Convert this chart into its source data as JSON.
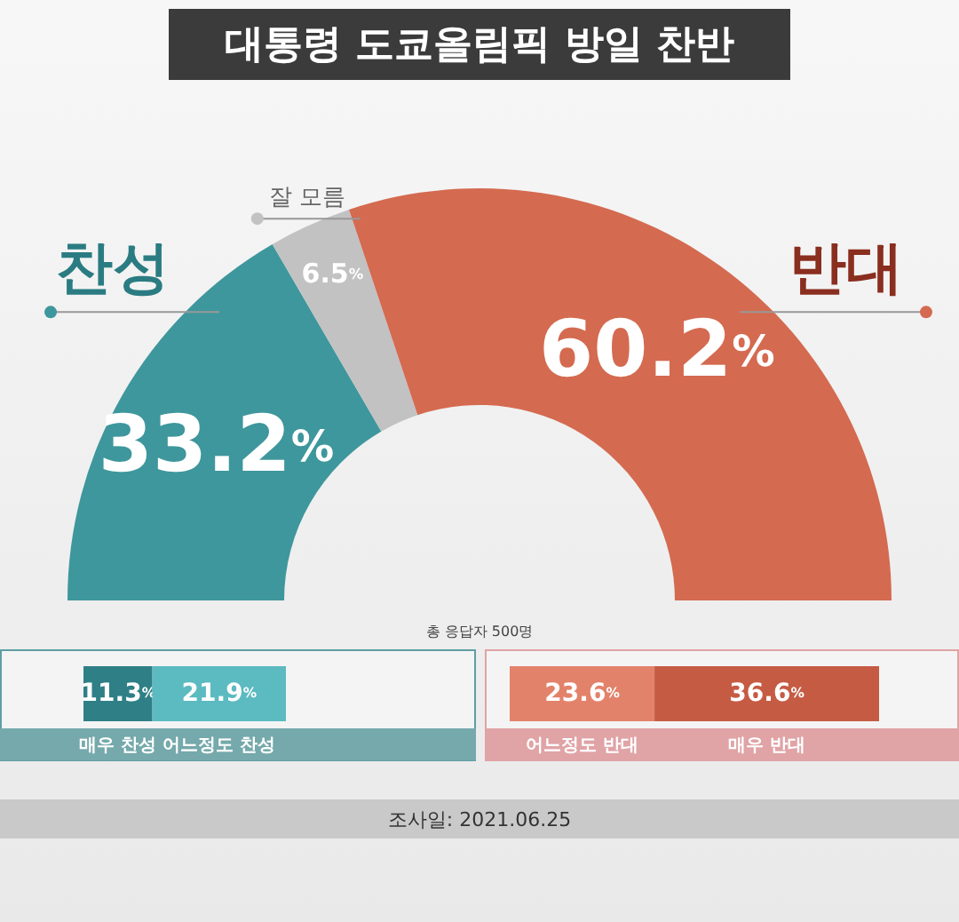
{
  "chart_data": [
    {
      "type": "donut",
      "title": "대통령 도쿄올림픽 방일 찬반",
      "categories": [
        "찬성",
        "잘 모름",
        "반대"
      ],
      "values": [
        33.2,
        6.5,
        60.2
      ],
      "value_labels": [
        "33.2%",
        "6.5%",
        "60.2%"
      ],
      "colors": [
        "#3e979c",
        "#c2c2c2",
        "#d46a50"
      ],
      "annotations": [
        "총 응답자 500명",
        "조사일: 2021.06.25"
      ]
    },
    {
      "type": "bar",
      "orientation": "horizontal",
      "stacked": true,
      "categories": [
        null
      ],
      "xlim": [
        0,
        33.2
      ],
      "tick_labels": false,
      "series": [
        {
          "name": "매우 찬성",
          "color": "#2f7f86",
          "values": [
            11.3
          ],
          "value_labels": [
            "11.3%"
          ]
        },
        {
          "name": "어느정도 찬성",
          "color": "#5cbac1",
          "values": [
            21.9
          ],
          "value_labels": [
            "21.9%"
          ]
        }
      ]
    },
    {
      "type": "bar",
      "orientation": "horizontal",
      "stacked": true,
      "categories": [
        null
      ],
      "xlim": [
        0,
        60.2
      ],
      "tick_labels": false,
      "series": [
        {
          "name": "어느정도 반대",
          "color": "#e3826a",
          "values": [
            23.6
          ],
          "value_labels": [
            "23.6%"
          ]
        },
        {
          "name": "매우 반대",
          "color": "#c65b44",
          "values": [
            36.6
          ],
          "value_labels": [
            "36.6%"
          ]
        }
      ]
    }
  ]
}
